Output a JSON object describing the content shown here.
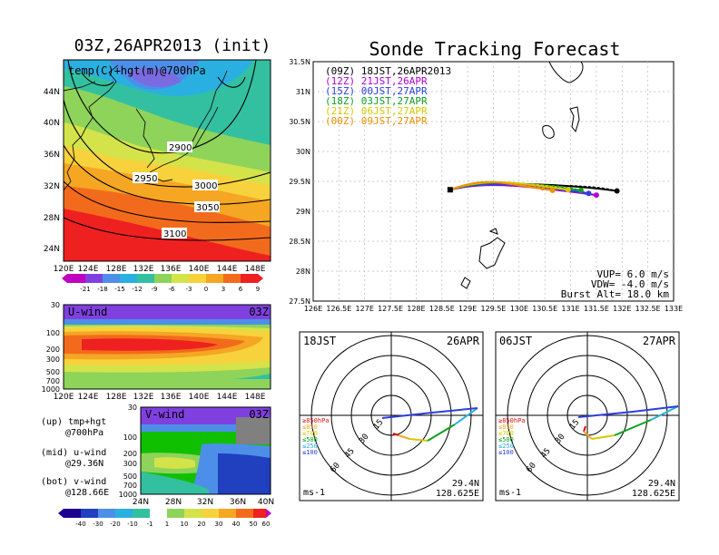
{
  "left": {
    "title": "03Z,26APR2013 (init)",
    "top_map": {
      "label": "temp(C)+hgt(m)@700hPa",
      "lat_ticks": [
        "44N",
        "40N",
        "36N",
        "32N",
        "28N",
        "24N"
      ],
      "lon_ticks": [
        "120E",
        "124E",
        "128E",
        "132E",
        "136E",
        "140E",
        "144E",
        "148E"
      ],
      "contours": [
        "2900",
        "2950",
        "3000",
        "3050",
        "3100"
      ],
      "colorbar": [
        "-21",
        "-18",
        "-15",
        "-12",
        "-9",
        "-6",
        "-3",
        "0",
        "3",
        "6",
        "9"
      ]
    },
    "u_panel": {
      "label": "U-wind",
      "time": "03Z",
      "p_ticks": [
        "30",
        "100",
        "200",
        "300",
        "500",
        "700",
        "1000"
      ],
      "lon_ticks": [
        "120E",
        "124E",
        "128E",
        "132E",
        "136E",
        "140E",
        "144E",
        "148E"
      ]
    },
    "v_panel": {
      "label": "V-wind",
      "time": "03Z",
      "p_ticks": [
        "30",
        "100",
        "200",
        "300",
        "500",
        "700",
        "1000"
      ],
      "lat_ticks": [
        "24N",
        "28N",
        "32N",
        "36N",
        "40N"
      ],
      "colorbar": [
        "-40",
        "-30",
        "-20",
        "-10",
        "-1",
        "1",
        "10",
        "20",
        "30",
        "40",
        "50",
        "60"
      ]
    },
    "legend": [
      {
        "line1": "(up) tmp+hgt",
        "line2": "@700hPa"
      },
      {
        "line1": "(mid) u-wind",
        "line2": "@29.36N"
      },
      {
        "line1": "(bot) v-wind",
        "line2": "@128.66E"
      }
    ]
  },
  "right": {
    "title": "Sonde Tracking Forecast",
    "legend": [
      {
        "text": "(09Z) 18JST,26APR2013",
        "color": "#000000"
      },
      {
        "text": "(12Z) 21JST,26APR",
        "color": "#b000d0"
      },
      {
        "text": "(15Z) 00JST,27APR",
        "color": "#2a3fe0"
      },
      {
        "text": "(18Z) 03JST,27APR",
        "color": "#10a020"
      },
      {
        "text": "(21Z) 06JST,27APR",
        "color": "#d8c800"
      },
      {
        "text": "(00Z) 09JST,27APR",
        "color": "#f09000"
      }
    ],
    "params": [
      "VUP= 6.0 m/s",
      "VDW= -4.0 m/s",
      "Burst Alt= 18.0 km"
    ],
    "lat_ticks": [
      "31.5N",
      "31N",
      "30.5N",
      "30N",
      "29.5N",
      "29N",
      "28.5N",
      "28N",
      "27.5N"
    ],
    "lon_ticks": [
      "126E",
      "126.5E",
      "127E",
      "127.5E",
      "128E",
      "128.5E",
      "129E",
      "129.5E",
      "130E",
      "130.5E",
      "131E",
      "131.5E",
      "132E",
      "132.5E",
      "133E"
    ]
  },
  "hodos": [
    {
      "time": "18JST",
      "date": "26APR",
      "lat": "29.4N",
      "lon": "128.625E",
      "unit": "ms-1",
      "rings": [
        "15",
        "30",
        "45",
        "60"
      ],
      "levels": [
        "≥850hPa",
        "≤850",
        "≤700",
        "≤500",
        "≤250",
        "≤100"
      ]
    },
    {
      "time": "06JST",
      "date": "27APR",
      "lat": "29.4N",
      "lon": "128.625E",
      "unit": "ms-1",
      "rings": [
        "15",
        "30",
        "45",
        "60"
      ],
      "levels": [
        "≥850hPa",
        "≤850",
        "≤700",
        "≤500",
        "≤250",
        "≤100"
      ]
    }
  ],
  "chart_data": {
    "type": "line",
    "title": "Sonde Tracking Forecast",
    "xlim": [
      126,
      133
    ],
    "ylim": [
      27.5,
      31.5
    ],
    "launch": {
      "lon": 128.66,
      "lat": 29.36
    },
    "series": [
      {
        "name": "(09Z) 18JST,26APR2013",
        "end": {
          "lon": 131.9,
          "lat": 29.34
        }
      },
      {
        "name": "(12Z) 21JST,26APR",
        "end": {
          "lon": 131.5,
          "lat": 29.27
        }
      },
      {
        "name": "(15Z) 00JST,27APR",
        "end": {
          "lon": 131.35,
          "lat": 29.3
        }
      },
      {
        "name": "(18Z) 03JST,27APR",
        "end": {
          "lon": 131.2,
          "lat": 29.35
        }
      },
      {
        "name": "(21Z) 06JST,27APR",
        "end": {
          "lon": 130.95,
          "lat": 29.36
        }
      },
      {
        "name": "(00Z) 09JST,27APR",
        "end": {
          "lon": 130.65,
          "lat": 29.35
        }
      }
    ]
  }
}
